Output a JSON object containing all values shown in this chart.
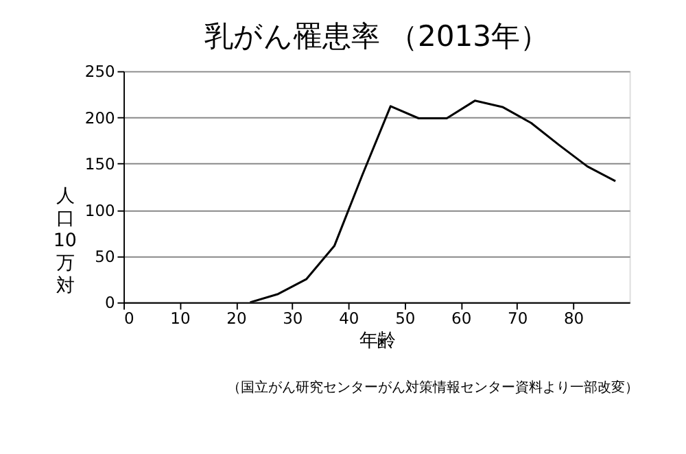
{
  "chart_data": {
    "type": "line",
    "title": "乳がん罹患率 （2013年）",
    "xlabel": "年齢",
    "ylabel": "人口10万対",
    "x": [
      22.5,
      27.5,
      32.5,
      37.5,
      42.5,
      47.5,
      52.5,
      57.5,
      62.5,
      67.5,
      72.5,
      77.5,
      82.5,
      87.5
    ],
    "series": [
      {
        "color": "#000000",
        "values": [
          0,
          9,
          25,
          61,
          138,
          212,
          199,
          199,
          218,
          211,
          194,
          170,
          147,
          131
        ]
      }
    ],
    "xlim": [
      0,
      90
    ],
    "xticks": [
      0,
      10,
      20,
      30,
      40,
      50,
      60,
      70,
      80
    ],
    "ylim": [
      0,
      250
    ],
    "yticks": [
      0,
      50,
      100,
      150,
      200,
      250
    ],
    "grid": "y",
    "marker": "none",
    "line_style": "solid",
    "annotations": [
      "（国立がん研究センターがん対策情報センター資料より一部改変）"
    ]
  }
}
